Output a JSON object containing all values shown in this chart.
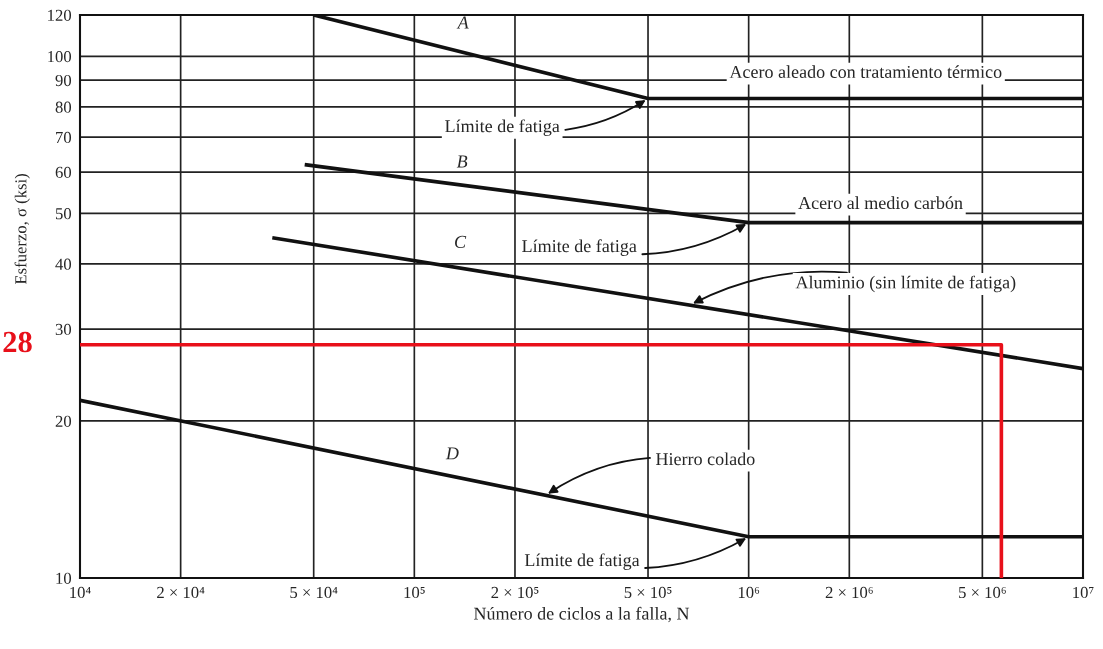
{
  "chart_data": {
    "type": "line",
    "xlabel": "Número de ciclos a la falla, N",
    "ylabel": "Esfuerzo, σ (ksi)",
    "log": "xy",
    "grid": true,
    "marker": "none",
    "line_style": "solid",
    "xlim": [
      10000,
      10000000
    ],
    "ylim": [
      10,
      120
    ],
    "xticks": [
      {
        "value": 10000,
        "label": "10⁴"
      },
      {
        "value": 20000,
        "label": "2 × 10⁴"
      },
      {
        "value": 50000,
        "label": "5 × 10⁴"
      },
      {
        "value": 100000,
        "label": "10⁵"
      },
      {
        "value": 200000,
        "label": "2 × 10⁵"
      },
      {
        "value": 500000,
        "label": "5 × 10⁵"
      },
      {
        "value": 1000000,
        "label": "10⁶"
      },
      {
        "value": 2000000,
        "label": "2 × 10⁶"
      },
      {
        "value": 5000000,
        "label": "5 × 10⁶"
      },
      {
        "value": 10000000,
        "label": "10⁷"
      }
    ],
    "yticks": [
      10,
      20,
      30,
      40,
      50,
      60,
      70,
      80,
      90,
      100,
      120
    ],
    "series": [
      {
        "color": "#111111",
        "x": [
          50000,
          500000,
          10000000
        ],
        "values": [
          120,
          83,
          83
        ]
      },
      {
        "color": "#111111",
        "x": [
          47000,
          1000000,
          10000000
        ],
        "values": [
          62,
          48,
          48
        ]
      },
      {
        "color": "#111111",
        "x": [
          37600,
          10000000
        ],
        "values": [
          44.9,
          25.2
        ]
      },
      {
        "color": "#111111",
        "x": [
          10000,
          1000000,
          10000000
        ],
        "values": [
          21.9,
          12,
          12
        ]
      },
      {
        "color": "#e8101a",
        "x": [
          10000,
          5700000,
          5700000
        ],
        "values": [
          28,
          28,
          10
        ]
      }
    ],
    "annotations": [
      {
        "text": "A",
        "x": 140000,
        "y": 102
      },
      {
        "text": "Acero aleado con tratamiento térmico",
        "x": 2240000,
        "y": 83
      },
      {
        "text": "Límite de fatiga",
        "x": 500000,
        "y": 83
      },
      {
        "text": "B",
        "x": 139000,
        "y": 56.6
      },
      {
        "text": "Acero al medio carbón",
        "x": 2480000,
        "y": 48
      },
      {
        "text": "Límite de fatiga",
        "x": 1000000,
        "y": 48
      },
      {
        "text": "C",
        "x": 137000,
        "y": 39.2
      },
      {
        "text": "Aluminio (sin límite de fatiga)",
        "x": 670000,
        "y": 33.4
      },
      {
        "text": "D",
        "x": 130000,
        "y": 15.7
      },
      {
        "text": "Hierro colado",
        "x": 247000,
        "y": 14.4
      },
      {
        "text": "Límite de fatiga",
        "x": 1000000,
        "y": 12
      },
      {
        "text": "28",
        "x": 10000,
        "y": 28
      }
    ]
  }
}
